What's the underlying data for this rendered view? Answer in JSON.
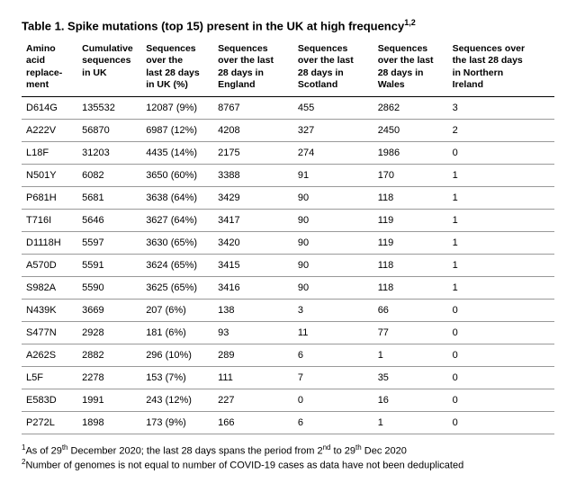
{
  "title_prefix": "Table 1. Spike mutations (top 15) present in the UK at high frequency",
  "title_super": "1,2",
  "columns": [
    "Amino\nacid\nreplace-\nment",
    "Cumulative\nsequences\nin UK",
    "Sequences\nover the\nlast 28 days\nin UK (%)",
    "Sequences\nover the last\n28 days in\nEngland",
    "Sequences\nover the last\n28 days in\nScotland",
    "Sequences\nover the last\n28 days in\nWales",
    "Sequences over\nthe last 28 days\nin Northern\nIreland"
  ],
  "rows": [
    [
      "D614G",
      "135532",
      "12087 (9%)",
      "8767",
      "455",
      "2862",
      "3"
    ],
    [
      "A222V",
      "56870",
      "6987 (12%)",
      "4208",
      "327",
      "2450",
      "2"
    ],
    [
      "L18F",
      "31203",
      "4435 (14%)",
      "2175",
      "274",
      "1986",
      "0"
    ],
    [
      "N501Y",
      "6082",
      "3650 (60%)",
      "3388",
      "91",
      "170",
      "1"
    ],
    [
      "P681H",
      "5681",
      "3638 (64%)",
      "3429",
      "90",
      "118",
      "1"
    ],
    [
      "T716I",
      "5646",
      "3627 (64%)",
      "3417",
      "90",
      "119",
      "1"
    ],
    [
      "D1118H",
      "5597",
      "3630 (65%)",
      "3420",
      "90",
      "119",
      "1"
    ],
    [
      "A570D",
      "5591",
      "3624 (65%)",
      "3415",
      "90",
      "118",
      "1"
    ],
    [
      "S982A",
      "5590",
      "3625 (65%)",
      "3416",
      "90",
      "118",
      "1"
    ],
    [
      "N439K",
      "3669",
      "207 (6%)",
      "138",
      "3",
      "66",
      "0"
    ],
    [
      "S477N",
      "2928",
      "181 (6%)",
      "93",
      "11",
      "77",
      "0"
    ],
    [
      "A262S",
      "2882",
      "296 (10%)",
      "289",
      "6",
      "1",
      "0"
    ],
    [
      "L5F",
      "2278",
      "153 (7%)",
      "111",
      "7",
      "35",
      "0"
    ],
    [
      "E583D",
      "1991",
      "243 (12%)",
      "227",
      "0",
      "16",
      "0"
    ],
    [
      "P272L",
      "1898",
      "173 (9%)",
      "166",
      "6",
      "1",
      "0"
    ]
  ],
  "footnote1_sup": "1",
  "footnote1_a": "As of 29",
  "footnote1_th1": "th",
  "footnote1_b": " December 2020; the last 28 days spans the period from 2",
  "footnote1_nd": "nd",
  "footnote1_c": " to 29",
  "footnote1_th2": "th",
  "footnote1_d": " Dec 2020",
  "footnote2_sup": "2",
  "footnote2": "Number of genomes is not equal to number of COVID-19 cases as data have not been deduplicated"
}
